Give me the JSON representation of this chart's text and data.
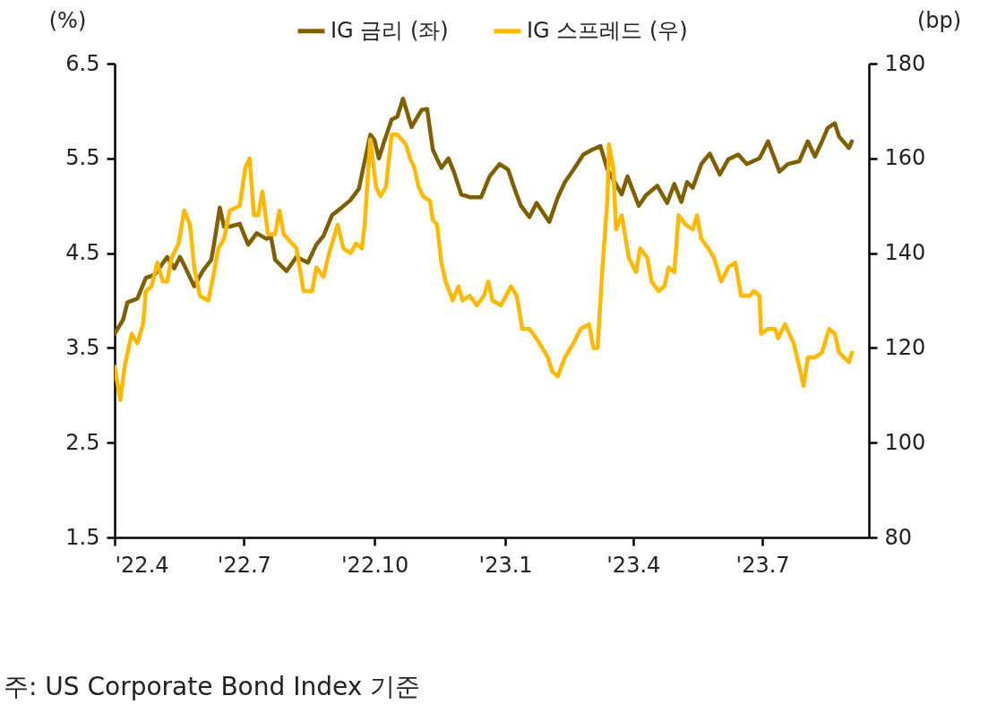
{
  "chart_data": {
    "type": "line",
    "ylabel": "(%)",
    "y2label": "(bp)",
    "xlim": [
      "2022-04-01",
      "2023-09-14"
    ],
    "xticks": [
      {
        "value": "2022-04-01",
        "label": "'22.4"
      },
      {
        "value": "2022-07-01",
        "label": "'22.7"
      },
      {
        "value": "2022-10-01",
        "label": "'22.10"
      },
      {
        "value": "2023-01-01",
        "label": "'23.1"
      },
      {
        "value": "2023-04-01",
        "label": "'23.4"
      },
      {
        "value": "2023-07-01",
        "label": "'23.7"
      }
    ],
    "ylim": [
      1.5,
      6.5
    ],
    "yticks": [
      1.5,
      2.5,
      3.5,
      4.5,
      5.5,
      6.5
    ],
    "y2lim": [
      80,
      180
    ],
    "y2ticks": [
      80,
      100,
      120,
      140,
      160,
      180
    ],
    "legend": "top",
    "series": [
      {
        "name": "IG 금리 (좌)",
        "color": "#7f6000",
        "axis": "y",
        "x": [
          "2022-04-01",
          "2022-04-07",
          "2022-04-10",
          "2022-04-17",
          "2022-04-23",
          "2022-04-29",
          "2022-05-08",
          "2022-05-13",
          "2022-05-17",
          "2022-05-21",
          "2022-05-27",
          "2022-06-02",
          "2022-06-08",
          "2022-06-10",
          "2022-06-14",
          "2022-06-17",
          "2022-06-21",
          "2022-06-28",
          "2022-07-04",
          "2022-07-10",
          "2022-07-17",
          "2022-07-20",
          "2022-07-23",
          "2022-07-31",
          "2022-08-07",
          "2022-08-15",
          "2022-08-21",
          "2022-08-26",
          "2022-09-01",
          "2022-09-07",
          "2022-09-14",
          "2022-09-20",
          "2022-09-23",
          "2022-09-28",
          "2022-10-01",
          "2022-10-04",
          "2022-10-08",
          "2022-10-13",
          "2022-10-17",
          "2022-10-21",
          "2022-10-27",
          "2022-11-03",
          "2022-11-07",
          "2022-11-11",
          "2022-11-17",
          "2022-11-22",
          "2022-11-26",
          "2022-12-01",
          "2022-12-07",
          "2022-12-15",
          "2022-12-21",
          "2022-12-28",
          "2023-01-03",
          "2023-01-08",
          "2023-01-12",
          "2023-01-18",
          "2023-01-23",
          "2023-02-01",
          "2023-02-07",
          "2023-02-12",
          "2023-02-18",
          "2023-02-25",
          "2023-03-03",
          "2023-03-09",
          "2023-03-14",
          "2023-03-24",
          "2023-03-28",
          "2023-04-05",
          "2023-04-10",
          "2023-04-18",
          "2023-04-25",
          "2023-04-30",
          "2023-05-05",
          "2023-05-09",
          "2023-05-13",
          "2023-05-19",
          "2023-05-25",
          "2023-06-01",
          "2023-06-07",
          "2023-06-14",
          "2023-06-20",
          "2023-06-29",
          "2023-07-05",
          "2023-07-13",
          "2023-07-19",
          "2023-07-27",
          "2023-08-02",
          "2023-08-07",
          "2023-08-12",
          "2023-08-16",
          "2023-08-21",
          "2023-08-24",
          "2023-08-31",
          "2023-09-02"
        ],
        "values": [
          3.65,
          3.8,
          3.98,
          4.02,
          4.24,
          4.27,
          4.46,
          4.34,
          4.46,
          4.34,
          4.15,
          4.31,
          4.43,
          4.6,
          4.98,
          4.78,
          4.78,
          4.81,
          4.59,
          4.71,
          4.65,
          4.68,
          4.43,
          4.31,
          4.46,
          4.4,
          4.59,
          4.68,
          4.9,
          4.97,
          5.06,
          5.18,
          5.4,
          5.75,
          5.69,
          5.5,
          5.69,
          5.91,
          5.94,
          6.13,
          5.83,
          6.01,
          6.02,
          5.59,
          5.4,
          5.5,
          5.35,
          5.12,
          5.09,
          5.09,
          5.31,
          5.44,
          5.38,
          5.16,
          5.0,
          4.88,
          5.03,
          4.83,
          5.09,
          5.25,
          5.38,
          5.54,
          5.59,
          5.63,
          5.38,
          5.12,
          5.31,
          5.0,
          5.11,
          5.21,
          5.03,
          5.23,
          5.04,
          5.25,
          5.19,
          5.44,
          5.55,
          5.33,
          5.49,
          5.54,
          5.44,
          5.5,
          5.68,
          5.36,
          5.44,
          5.47,
          5.68,
          5.52,
          5.68,
          5.82,
          5.87,
          5.73,
          5.61,
          5.68
        ]
      },
      {
        "name": "IG 스프레드 (우)",
        "color": "#ffb900",
        "axis": "y2",
        "x": [
          "2022-04-01",
          "2022-04-05",
          "2022-04-08",
          "2022-04-13",
          "2022-04-17",
          "2022-04-21",
          "2022-04-23",
          "2022-04-27",
          "2022-05-01",
          "2022-05-05",
          "2022-05-08",
          "2022-05-11",
          "2022-05-16",
          "2022-05-20",
          "2022-05-24",
          "2022-05-27",
          "2022-05-31",
          "2022-06-06",
          "2022-06-10",
          "2022-06-13",
          "2022-06-17",
          "2022-06-21",
          "2022-06-28",
          "2022-07-02",
          "2022-07-05",
          "2022-07-08",
          "2022-07-11",
          "2022-07-14",
          "2022-07-18",
          "2022-07-23",
          "2022-07-26",
          "2022-07-29",
          "2022-08-07",
          "2022-08-12",
          "2022-08-18",
          "2022-08-21",
          "2022-08-26",
          "2022-08-30",
          "2022-09-05",
          "2022-09-09",
          "2022-09-14",
          "2022-09-18",
          "2022-09-22",
          "2022-09-24",
          "2022-09-28",
          "2022-10-02",
          "2022-10-05",
          "2022-10-09",
          "2022-10-13",
          "2022-10-17",
          "2022-10-23",
          "2022-10-26",
          "2022-10-29",
          "2022-11-01",
          "2022-11-04",
          "2022-11-09",
          "2022-11-11",
          "2022-11-14",
          "2022-11-17",
          "2022-11-20",
          "2022-11-25",
          "2022-11-29",
          "2022-12-02",
          "2022-12-07",
          "2022-12-12",
          "2022-12-17",
          "2022-12-20",
          "2022-12-23",
          "2022-12-29",
          "2023-01-05",
          "2023-01-09",
          "2023-01-13",
          "2023-01-18",
          "2023-01-23",
          "2023-01-27",
          "2023-01-31",
          "2023-02-03",
          "2023-02-07",
          "2023-02-12",
          "2023-02-18",
          "2023-02-23",
          "2023-03-01",
          "2023-03-04",
          "2023-03-07",
          "2023-03-10",
          "2023-03-14",
          "2023-03-15",
          "2023-03-18",
          "2023-03-20",
          "2023-03-24",
          "2023-03-29",
          "2023-04-03",
          "2023-04-06",
          "2023-04-11",
          "2023-04-14",
          "2023-04-19",
          "2023-04-23",
          "2023-04-26",
          "2023-04-30",
          "2023-05-03",
          "2023-05-08",
          "2023-05-13",
          "2023-05-16",
          "2023-05-19",
          "2023-05-24",
          "2023-05-28",
          "2023-06-02",
          "2023-06-07",
          "2023-06-12",
          "2023-06-16",
          "2023-06-22",
          "2023-06-25",
          "2023-06-29",
          "2023-06-30",
          "2023-07-05",
          "2023-07-10",
          "2023-07-12",
          "2023-07-17",
          "2023-07-23",
          "2023-07-27",
          "2023-07-30",
          "2023-08-02",
          "2023-08-07",
          "2023-08-12",
          "2023-08-17",
          "2023-08-21",
          "2023-08-24",
          "2023-08-31",
          "2023-09-02"
        ],
        "values": [
          116,
          109,
          116,
          123,
          121,
          125,
          132,
          133,
          138,
          134,
          134,
          139,
          142,
          149,
          146,
          137,
          131,
          130,
          136,
          141,
          143,
          149,
          150,
          158,
          160,
          148,
          148,
          153,
          144,
          144,
          149,
          144,
          141,
          132,
          132,
          137,
          135,
          140,
          146,
          141,
          140,
          142,
          141,
          146,
          164,
          154,
          152,
          154,
          165,
          165,
          163,
          160,
          158,
          154,
          152,
          151,
          147,
          146,
          138,
          134,
          130,
          133,
          130,
          131,
          129,
          131,
          134,
          130,
          129,
          133,
          131,
          124,
          124,
          122,
          120,
          118,
          115,
          114,
          118,
          121,
          124,
          125,
          120,
          120,
          135,
          152,
          163,
          158,
          145,
          148,
          139,
          136,
          141,
          139,
          134,
          132,
          133,
          137,
          136,
          148,
          146,
          145,
          148,
          143,
          141,
          139,
          134,
          137,
          138,
          131,
          131,
          132,
          131,
          123,
          124,
          124,
          122,
          125,
          121,
          116,
          112,
          118,
          118,
          119,
          124,
          123,
          119,
          117,
          119
        ]
      }
    ],
    "annotations": [
      "주: US Corporate Bond Index 기준"
    ]
  }
}
